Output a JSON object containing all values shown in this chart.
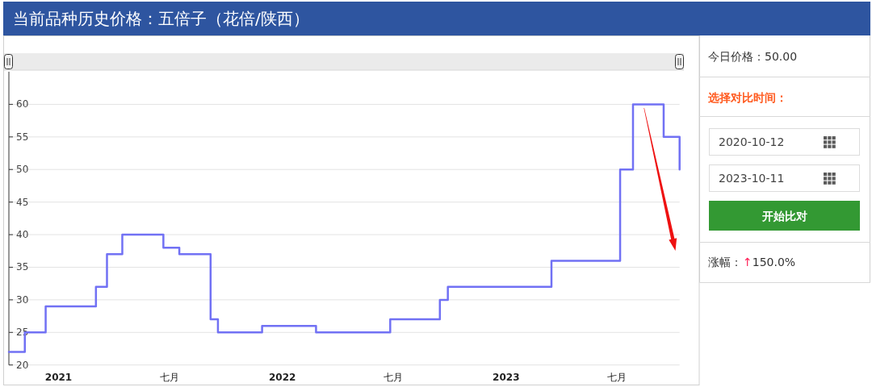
{
  "chart_data": [
    {
      "type": "step",
      "title": "当前品种历史价格：五倍子（花倍/陕西）",
      "color": "#7171f4",
      "x": [
        "2020-10-12",
        "2020-11-07",
        "2020-12-11",
        "2021-03-03",
        "2021-03-21",
        "2021-04-15",
        "2021-06-21",
        "2021-07-17",
        "2021-09-06",
        "2021-09-18",
        "2021-11-29",
        "2022-02-25",
        "2022-06-26",
        "2022-09-15",
        "2022-09-28",
        "2023-03-16",
        "2023-07-06",
        "2023-07-27",
        "2023-09-15",
        "2023-10-11"
      ],
      "values": [
        22,
        25,
        29,
        32,
        37,
        40,
        38,
        37,
        27,
        25,
        26,
        25,
        27,
        30,
        32,
        36,
        50,
        60,
        55,
        50
      ],
      "xlim": [
        "2020-10-12",
        "2023-10-11"
      ],
      "xticks": [
        {
          "value": "2021-01-01",
          "label": "2021"
        },
        {
          "value": "2021-07-01",
          "label": "七月"
        },
        {
          "value": "2022-01-01",
          "label": "2022"
        },
        {
          "value": "2022-07-01",
          "label": "七月"
        },
        {
          "value": "2023-01-01",
          "label": "2023"
        },
        {
          "value": "2023-07-01",
          "label": "七月"
        }
      ],
      "ylim": [
        20,
        65
      ],
      "yticks": [
        20,
        25,
        30,
        35,
        40,
        45,
        50,
        55,
        60
      ],
      "grid": "y"
    },
    {
      "type": "other",
      "annotations": [
        "今日价格：50.00",
        "选择对比时间：",
        "2020-10-12",
        "2023-10-11",
        "开始比对",
        "涨幅：",
        "↑150.0%"
      ]
    }
  ]
}
